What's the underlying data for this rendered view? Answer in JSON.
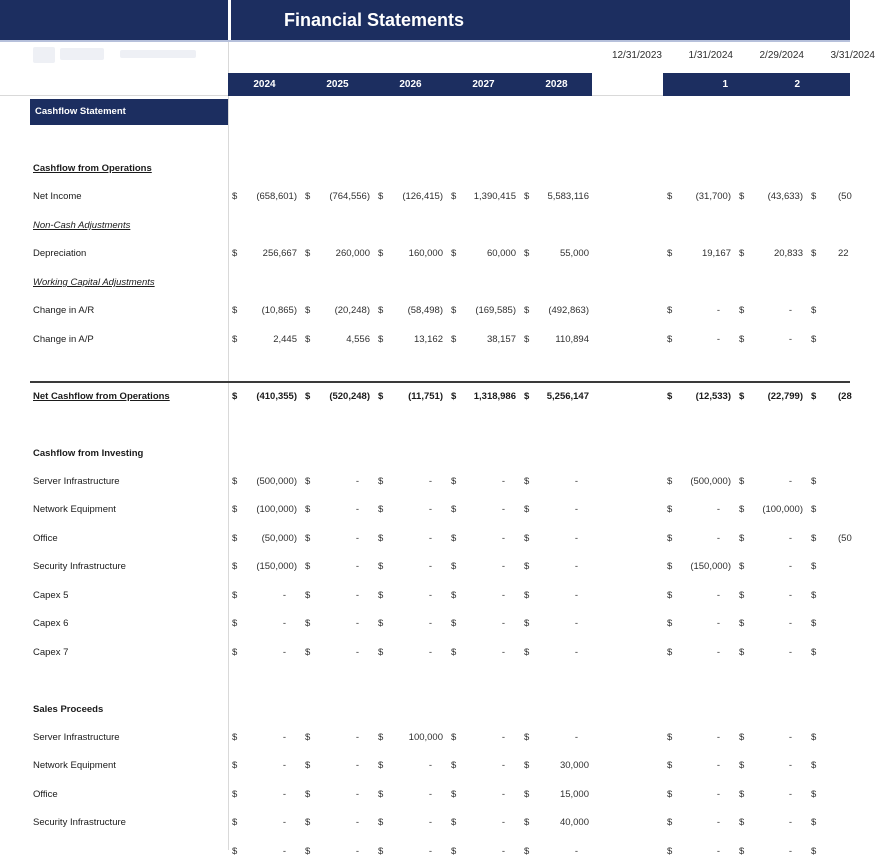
{
  "header": {
    "title": "Financial Statements",
    "date_columns": [
      "12/31/2023",
      "1/31/2024",
      "2/29/2024",
      "3/31/2024"
    ],
    "year_columns": [
      "2024",
      "2025",
      "2026",
      "2027",
      "2028"
    ],
    "month_columns": [
      "1",
      "2"
    ]
  },
  "colors": {
    "navy": "#1C2E60",
    "header_underline": "#B6C0DB",
    "gridline": "#D9D9D9",
    "total_rule": "#3A3A3A"
  },
  "sheet": {
    "banner": "Cashflow Statement",
    "currency_symbol": "$",
    "rows": [
      {
        "type": "section",
        "label": "Cashflow from Operations"
      },
      {
        "type": "data",
        "label": "Net Income",
        "annual": [
          "(658,601)",
          "(764,556)",
          "(126,415)",
          "1,390,415",
          "5,583,116"
        ],
        "monthly": [
          "(31,700)",
          "(43,633)",
          "(50"
        ]
      },
      {
        "type": "subsection",
        "label": "Non-Cash Adjustments"
      },
      {
        "type": "data",
        "label": "Depreciation",
        "annual": [
          "256,667",
          "260,000",
          "160,000",
          "60,000",
          "55,000"
        ],
        "monthly": [
          "19,167",
          "20,833",
          "22"
        ]
      },
      {
        "type": "subsection",
        "label": "Working Capital Adjustments"
      },
      {
        "type": "data",
        "label": "Change in A/R",
        "annual": [
          "(10,865)",
          "(20,248)",
          "(58,498)",
          "(169,585)",
          "(492,863)"
        ],
        "monthly": [
          "-",
          "-",
          ""
        ]
      },
      {
        "type": "data",
        "label": "Change in A/P",
        "annual": [
          "2,445",
          "4,556",
          "13,162",
          "38,157",
          "110,894"
        ],
        "monthly": [
          "-",
          "-",
          ""
        ]
      },
      {
        "type": "spacer"
      },
      {
        "type": "total",
        "label": "Net Cashflow from Operations",
        "annual": [
          "(410,355)",
          "(520,248)",
          "(11,751)",
          "1,318,986",
          "5,256,147"
        ],
        "monthly": [
          "(12,533)",
          "(22,799)",
          "(28"
        ]
      },
      {
        "type": "spacer"
      },
      {
        "type": "section-plain",
        "label": "Cashflow from Investing"
      },
      {
        "type": "data",
        "label": "Server Infrastructure",
        "annual": [
          "(500,000)",
          "-",
          "-",
          "-",
          "-"
        ],
        "monthly": [
          "(500,000)",
          "-",
          ""
        ]
      },
      {
        "type": "data",
        "label": "Network Equipment",
        "annual": [
          "(100,000)",
          "-",
          "-",
          "-",
          "-"
        ],
        "monthly": [
          "-",
          "(100,000)",
          ""
        ]
      },
      {
        "type": "data",
        "label": "Office",
        "annual": [
          "(50,000)",
          "-",
          "-",
          "-",
          "-"
        ],
        "monthly": [
          "-",
          "-",
          "(50"
        ]
      },
      {
        "type": "data",
        "label": "Security Infrastructure",
        "annual": [
          "(150,000)",
          "-",
          "-",
          "-",
          "-"
        ],
        "monthly": [
          "(150,000)",
          "-",
          ""
        ]
      },
      {
        "type": "data",
        "label": "Capex 5",
        "annual": [
          "-",
          "-",
          "-",
          "-",
          "-"
        ],
        "monthly": [
          "-",
          "-",
          ""
        ]
      },
      {
        "type": "data",
        "label": "Capex 6",
        "annual": [
          "-",
          "-",
          "-",
          "-",
          "-"
        ],
        "monthly": [
          "-",
          "-",
          ""
        ]
      },
      {
        "type": "data",
        "label": "Capex 7",
        "annual": [
          "-",
          "-",
          "-",
          "-",
          "-"
        ],
        "monthly": [
          "-",
          "-",
          ""
        ]
      },
      {
        "type": "spacer"
      },
      {
        "type": "section-plain",
        "label": "Sales Proceeds"
      },
      {
        "type": "data",
        "label": "Server Infrastructure",
        "annual": [
          "-",
          "-",
          "100,000",
          "-",
          "-"
        ],
        "monthly": [
          "-",
          "-",
          ""
        ]
      },
      {
        "type": "data",
        "label": "Network Equipment",
        "annual": [
          "-",
          "-",
          "-",
          "-",
          "30,000"
        ],
        "monthly": [
          "-",
          "-",
          ""
        ]
      },
      {
        "type": "data",
        "label": "Office",
        "annual": [
          "-",
          "-",
          "-",
          "-",
          "15,000"
        ],
        "monthly": [
          "-",
          "-",
          ""
        ]
      },
      {
        "type": "data",
        "label": "Security Infrastructure",
        "annual": [
          "-",
          "-",
          "-",
          "-",
          "40,000"
        ],
        "monthly": [
          "-",
          "-",
          ""
        ]
      },
      {
        "type": "data",
        "label": "",
        "annual": [
          "-",
          "-",
          "-",
          "-",
          "-"
        ],
        "monthly": [
          "-",
          "-",
          ""
        ]
      }
    ]
  }
}
